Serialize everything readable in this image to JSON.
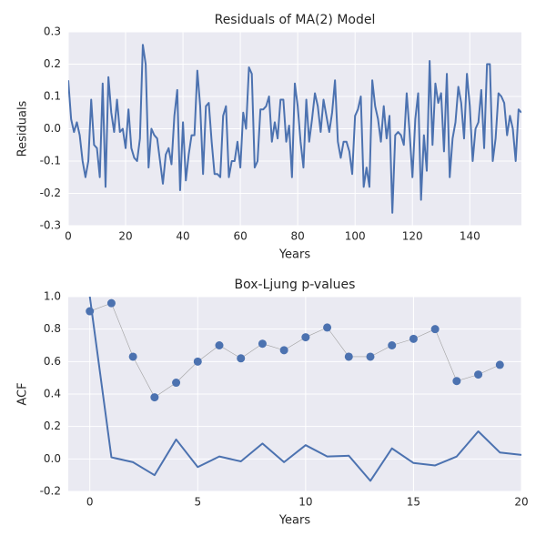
{
  "chart_data": [
    {
      "type": "line",
      "title": "Residuals of MA(2) Model",
      "xlabel": "Years",
      "ylabel": "Residuals",
      "xlim": [
        0,
        158
      ],
      "xticks": [
        0,
        20,
        40,
        60,
        80,
        100,
        120,
        140
      ],
      "ylim": [
        -0.3,
        0.3
      ],
      "yticks": [
        -0.3,
        -0.2,
        -0.1,
        {
          "value": 0,
          "label": "0.0"
        },
        0.1,
        0.2,
        0.3
      ],
      "grid": true,
      "background": "#eaeaf2",
      "series": [
        {
          "color": "#4c72b0",
          "marker": false,
          "x": [
            0,
            1,
            2,
            3,
            4,
            5,
            6,
            7,
            8,
            9,
            10,
            11,
            12,
            13,
            14,
            15,
            16,
            17,
            18,
            19,
            20,
            21,
            22,
            23,
            24,
            25,
            26,
            27,
            28,
            29,
            30,
            31,
            32,
            33,
            34,
            35,
            36,
            37,
            38,
            39,
            40,
            41,
            42,
            43,
            44,
            45,
            46,
            47,
            48,
            49,
            50,
            51,
            52,
            53,
            54,
            55,
            56,
            57,
            58,
            59,
            60,
            61,
            62,
            63,
            64,
            65,
            66,
            67,
            68,
            69,
            70,
            71,
            72,
            73,
            74,
            75,
            76,
            77,
            78,
            79,
            80,
            81,
            82,
            83,
            84,
            85,
            86,
            87,
            88,
            89,
            90,
            91,
            92,
            93,
            94,
            95,
            96,
            97,
            98,
            99,
            100,
            101,
            102,
            103,
            104,
            105,
            106,
            107,
            108,
            109,
            110,
            111,
            112,
            113,
            114,
            115,
            116,
            117,
            118,
            119,
            120,
            121,
            122,
            123,
            124,
            125,
            126,
            127,
            128,
            129,
            130,
            131,
            132,
            133,
            134,
            135,
            136,
            137,
            138,
            139,
            140,
            141,
            142,
            143,
            144,
            145,
            146,
            147,
            148,
            149,
            150,
            151,
            152,
            153,
            154,
            155,
            156,
            157,
            158
          ],
          "values": [
            0.15,
            0.03,
            -0.01,
            0.02,
            -0.02,
            -0.1,
            -0.15,
            -0.1,
            0.09,
            -0.05,
            -0.06,
            -0.15,
            0.14,
            -0.18,
            0.16,
            0.05,
            -0.01,
            0.09,
            -0.01,
            0,
            -0.06,
            0.06,
            -0.06,
            -0.09,
            -0.1,
            -0.03,
            0.26,
            0.2,
            -0.12,
            0,
            -0.02,
            -0.03,
            -0.1,
            -0.17,
            -0.08,
            -0.06,
            -0.11,
            0.04,
            0.12,
            -0.19,
            0.02,
            -0.16,
            -0.08,
            -0.02,
            -0.02,
            0.18,
            0.07,
            -0.14,
            0.07,
            0.08,
            -0.04,
            -0.14,
            -0.14,
            -0.15,
            0.04,
            0.07,
            -0.15,
            -0.1,
            -0.1,
            -0.04,
            -0.12,
            0.05,
            0,
            0.19,
            0.17,
            -0.12,
            -0.1,
            0.06,
            0.06,
            0.07,
            0.1,
            -0.04,
            0.02,
            -0.03,
            0.09,
            0.09,
            -0.04,
            0.01,
            -0.15,
            0.14,
            0.07,
            -0.04,
            -0.12,
            0.09,
            -0.04,
            0.03,
            0.11,
            0.07,
            -0.01,
            0.09,
            0.04,
            -0.01,
            0.05,
            0.15,
            -0.04,
            -0.09,
            -0.04,
            -0.04,
            -0.07,
            -0.14,
            0.04,
            0.06,
            0.1,
            -0.18,
            -0.12,
            -0.18,
            0.15,
            0.07,
            0.03,
            -0.04,
            0.07,
            -0.03,
            0.04,
            -0.26,
            -0.02,
            -0.01,
            -0.02,
            -0.05,
            0.11,
            -0.01,
            -0.15,
            0.03,
            0.11,
            -0.22,
            -0.02,
            -0.13,
            0.21,
            -0.05,
            0.14,
            0.08,
            0.11,
            -0.07,
            0.17,
            -0.15,
            -0.03,
            0.02,
            0.13,
            0.08,
            -0.03,
            0.17,
            0.07,
            -0.1,
            0,
            0.02,
            0.12,
            -0.06,
            0.2,
            0.2,
            -0.1,
            -0.03,
            0.11,
            0.1,
            0.08,
            -0.02,
            0.04,
            0,
            -0.1,
            0.06,
            0.05
          ]
        }
      ]
    },
    {
      "type": "line",
      "title": "Box-Ljung p-values",
      "xlabel": "Years",
      "ylabel": "ACF",
      "xlim": [
        -1,
        20
      ],
      "xticks": [
        0,
        5,
        10,
        15,
        20
      ],
      "ylim": [
        -0.2,
        1.0
      ],
      "yticks": [
        -0.2,
        {
          "value": 0,
          "label": "0.0"
        },
        0.2,
        0.4,
        0.6,
        0.8,
        {
          "value": 1,
          "label": "1.0"
        }
      ],
      "grid": true,
      "background": "#eaeaf2",
      "series": [
        {
          "color": "#4c72b0",
          "marker": false,
          "x": [
            0,
            1,
            2,
            3,
            4,
            5,
            6,
            7,
            8,
            9,
            10,
            11,
            12,
            13,
            14,
            15,
            16,
            17,
            18,
            19,
            20
          ],
          "values": [
            1.0,
            0.01,
            -0.02,
            -0.1,
            0.12,
            -0.05,
            0.015,
            -0.015,
            0.095,
            -0.02,
            0.085,
            0.015,
            0.02,
            -0.135,
            0.065,
            -0.025,
            -0.04,
            0.015,
            0.17,
            0.04,
            0.025
          ]
        },
        {
          "color": "#4c72b0",
          "line_color": "#a0a0a0",
          "marker": true,
          "x": [
            0,
            1,
            2,
            3,
            4,
            5,
            6,
            7,
            8,
            9,
            10,
            11,
            12,
            13,
            14,
            15,
            16,
            17,
            18,
            19
          ],
          "values": [
            0.91,
            0.96,
            0.63,
            0.38,
            0.47,
            0.6,
            0.7,
            0.62,
            0.71,
            0.67,
            0.75,
            0.81,
            0.63,
            0.63,
            0.7,
            0.74,
            0.8,
            0.48,
            0.52,
            0.58
          ]
        }
      ]
    }
  ]
}
